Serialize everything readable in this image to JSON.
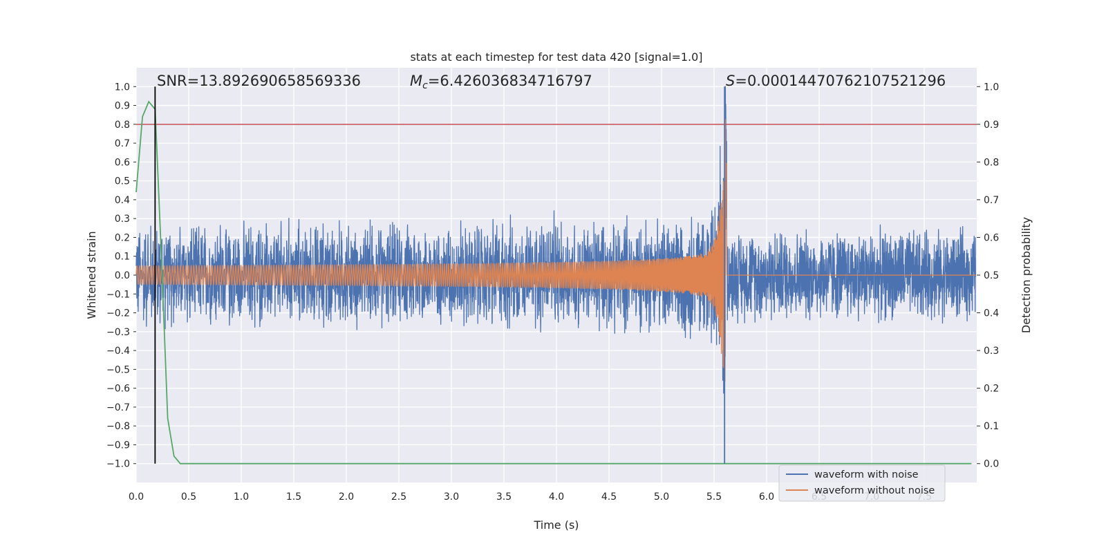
{
  "chart_data": {
    "type": "line",
    "title": "stats at each timestep for test data 420 [signal=1.0]",
    "xlabel": "Time (s)",
    "ylabel": "Whitened strain",
    "ylabel_right": "Detection probability",
    "xlim": [
      0.0,
      8.0
    ],
    "ylim": [
      -1.1,
      1.1
    ],
    "ylim_right": [
      -0.05,
      1.05
    ],
    "x_ticks": [
      0.0,
      0.5,
      1.0,
      1.5,
      2.0,
      2.5,
      3.0,
      3.5,
      4.0,
      4.5,
      5.0,
      5.5,
      6.0,
      6.5,
      7.0,
      7.5
    ],
    "x_tick_labels": [
      "0.0",
      "0.5",
      "1.0",
      "1.5",
      "2.0",
      "2.5",
      "3.0",
      "3.5",
      "4.0",
      "4.5",
      "5.0",
      "5.5",
      "6.0",
      "6.5",
      "7.0",
      "7.5"
    ],
    "y_ticks": [
      1.0,
      0.9,
      0.8,
      0.7,
      0.6,
      0.5,
      0.4,
      0.3,
      0.2,
      0.1,
      0.0,
      -0.1,
      -0.2,
      -0.3,
      -0.4,
      -0.5,
      -0.6,
      -0.7,
      -0.8,
      -0.9,
      -1.0
    ],
    "y_tick_labels": [
      "1.0",
      "0.9",
      "0.8",
      "0.7",
      "0.6",
      "0.5",
      "0.4",
      "0.3",
      "0.2",
      "0.1",
      "0.0",
      "−0.1",
      "−0.2",
      "−0.3",
      "−0.4",
      "−0.5",
      "−0.6",
      "−0.7",
      "−0.8",
      "−0.9",
      "−1.0"
    ],
    "y_ticks_right": [
      1.0,
      0.9,
      0.8,
      0.7,
      0.6,
      0.5,
      0.4,
      0.3,
      0.2,
      0.1,
      0.0
    ],
    "y_tick_labels_right": [
      "1.0",
      "0.9",
      "0.8",
      "0.7",
      "0.6",
      "0.5",
      "0.4",
      "0.3",
      "0.2",
      "0.1",
      "0.0"
    ],
    "grid": true,
    "legend_position": "bottom-right",
    "annotations": {
      "snr_text": "SNR=13.892690658569336",
      "mc_symbol": "M",
      "mc_subscript": "c",
      "mc_value": "=6.426036834716797",
      "s_symbol": "S",
      "s_value": "=0.00014470762107521296"
    },
    "series": [
      {
        "name": "waveform with noise",
        "color": "#4c72b0",
        "kind": "noisy-chirp",
        "noise_amplitude": 0.27,
        "chirp_amplitude_start": 0.05,
        "chirp_amplitude_peak": 0.9,
        "merger_time": 5.62,
        "min_value": -0.97,
        "max_value": 1.0
      },
      {
        "name": "waveform without noise",
        "color": "#dd8452",
        "kind": "chirp",
        "amplitude_start": 0.05,
        "amplitude_peak": 0.84,
        "merger_time": 5.62
      },
      {
        "name": "detection probability",
        "axis": "right",
        "color": "#55a868",
        "x": [
          0.0,
          0.06,
          0.12,
          0.18,
          0.24,
          0.3,
          0.36,
          0.42,
          7.95
        ],
        "values": [
          0.72,
          0.92,
          0.96,
          0.94,
          0.55,
          0.12,
          0.02,
          0.0,
          0.0
        ]
      }
    ],
    "threshold_line": {
      "axis": "right",
      "value": 0.9,
      "color": "#c44e52"
    },
    "vertical_markers": [
      {
        "x": 0.18,
        "y_range_right": [
          0.0,
          1.0
        ],
        "color": "#000000"
      },
      {
        "x": 5.6,
        "y_range_right": [
          0.0,
          1.0
        ],
        "color": "#4c72b0"
      }
    ]
  }
}
